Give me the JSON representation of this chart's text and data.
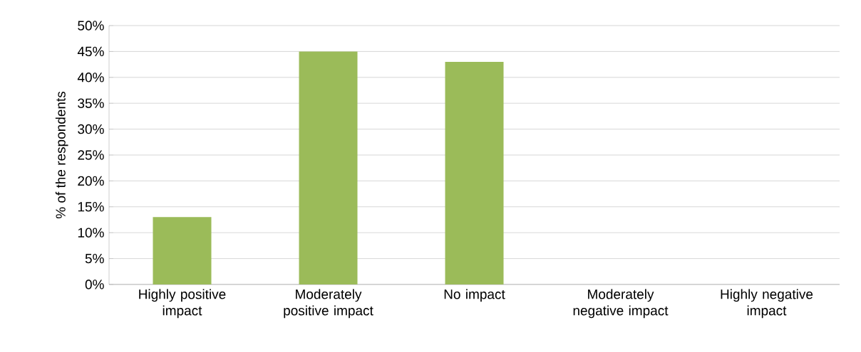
{
  "chart_data": {
    "type": "bar",
    "ylabel": "% of the respondents",
    "categories": [
      "Highly positive impact",
      "Moderately positive impact",
      "No impact",
      "Moderately negative impact",
      "Highly negative impact"
    ],
    "values": [
      13,
      45,
      43,
      0,
      0
    ],
    "color": "#9bbb59",
    "ylim": [
      0,
      50
    ],
    "yticks": [
      {
        "value": 0,
        "label": "0%"
      },
      {
        "value": 5,
        "label": "5%"
      },
      {
        "value": 10,
        "label": "10%"
      },
      {
        "value": 15,
        "label": "15%"
      },
      {
        "value": 20,
        "label": "20%"
      },
      {
        "value": 25,
        "label": "25%"
      },
      {
        "value": 30,
        "label": "30%"
      },
      {
        "value": 35,
        "label": "35%"
      },
      {
        "value": 40,
        "label": "40%"
      },
      {
        "value": 45,
        "label": "45%"
      },
      {
        "value": 50,
        "label": "50%"
      }
    ],
    "grid": "y"
  }
}
